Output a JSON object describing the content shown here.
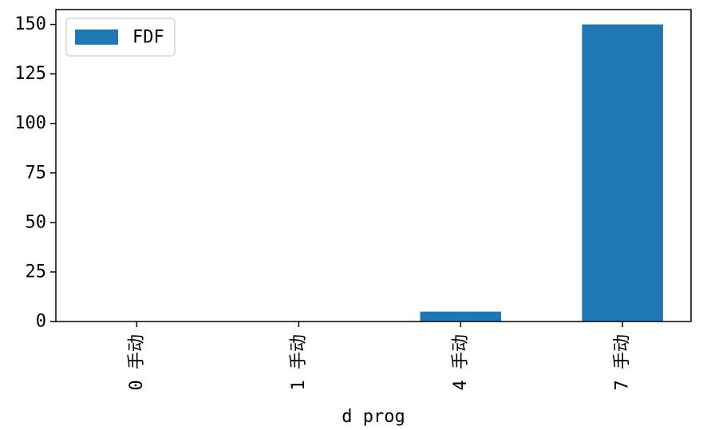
{
  "chart_data": {
    "type": "bar",
    "categories": [
      "0 手动",
      "1 手动",
      "4 手动",
      "7 手动"
    ],
    "series": [
      {
        "name": "FDF",
        "values": [
          0,
          0,
          5,
          150
        ],
        "color": "#1f77b4"
      }
    ],
    "xlabel": "d prog",
    "ylim": [
      0,
      157.5
    ],
    "yticks": [
      0,
      25,
      50,
      75,
      100,
      125,
      150
    ],
    "legend": {
      "placement": "top-left"
    },
    "grid": false
  },
  "colors": {
    "axis": "#000000",
    "legend_border": "#cccccc",
    "background": "#ffffff"
  }
}
